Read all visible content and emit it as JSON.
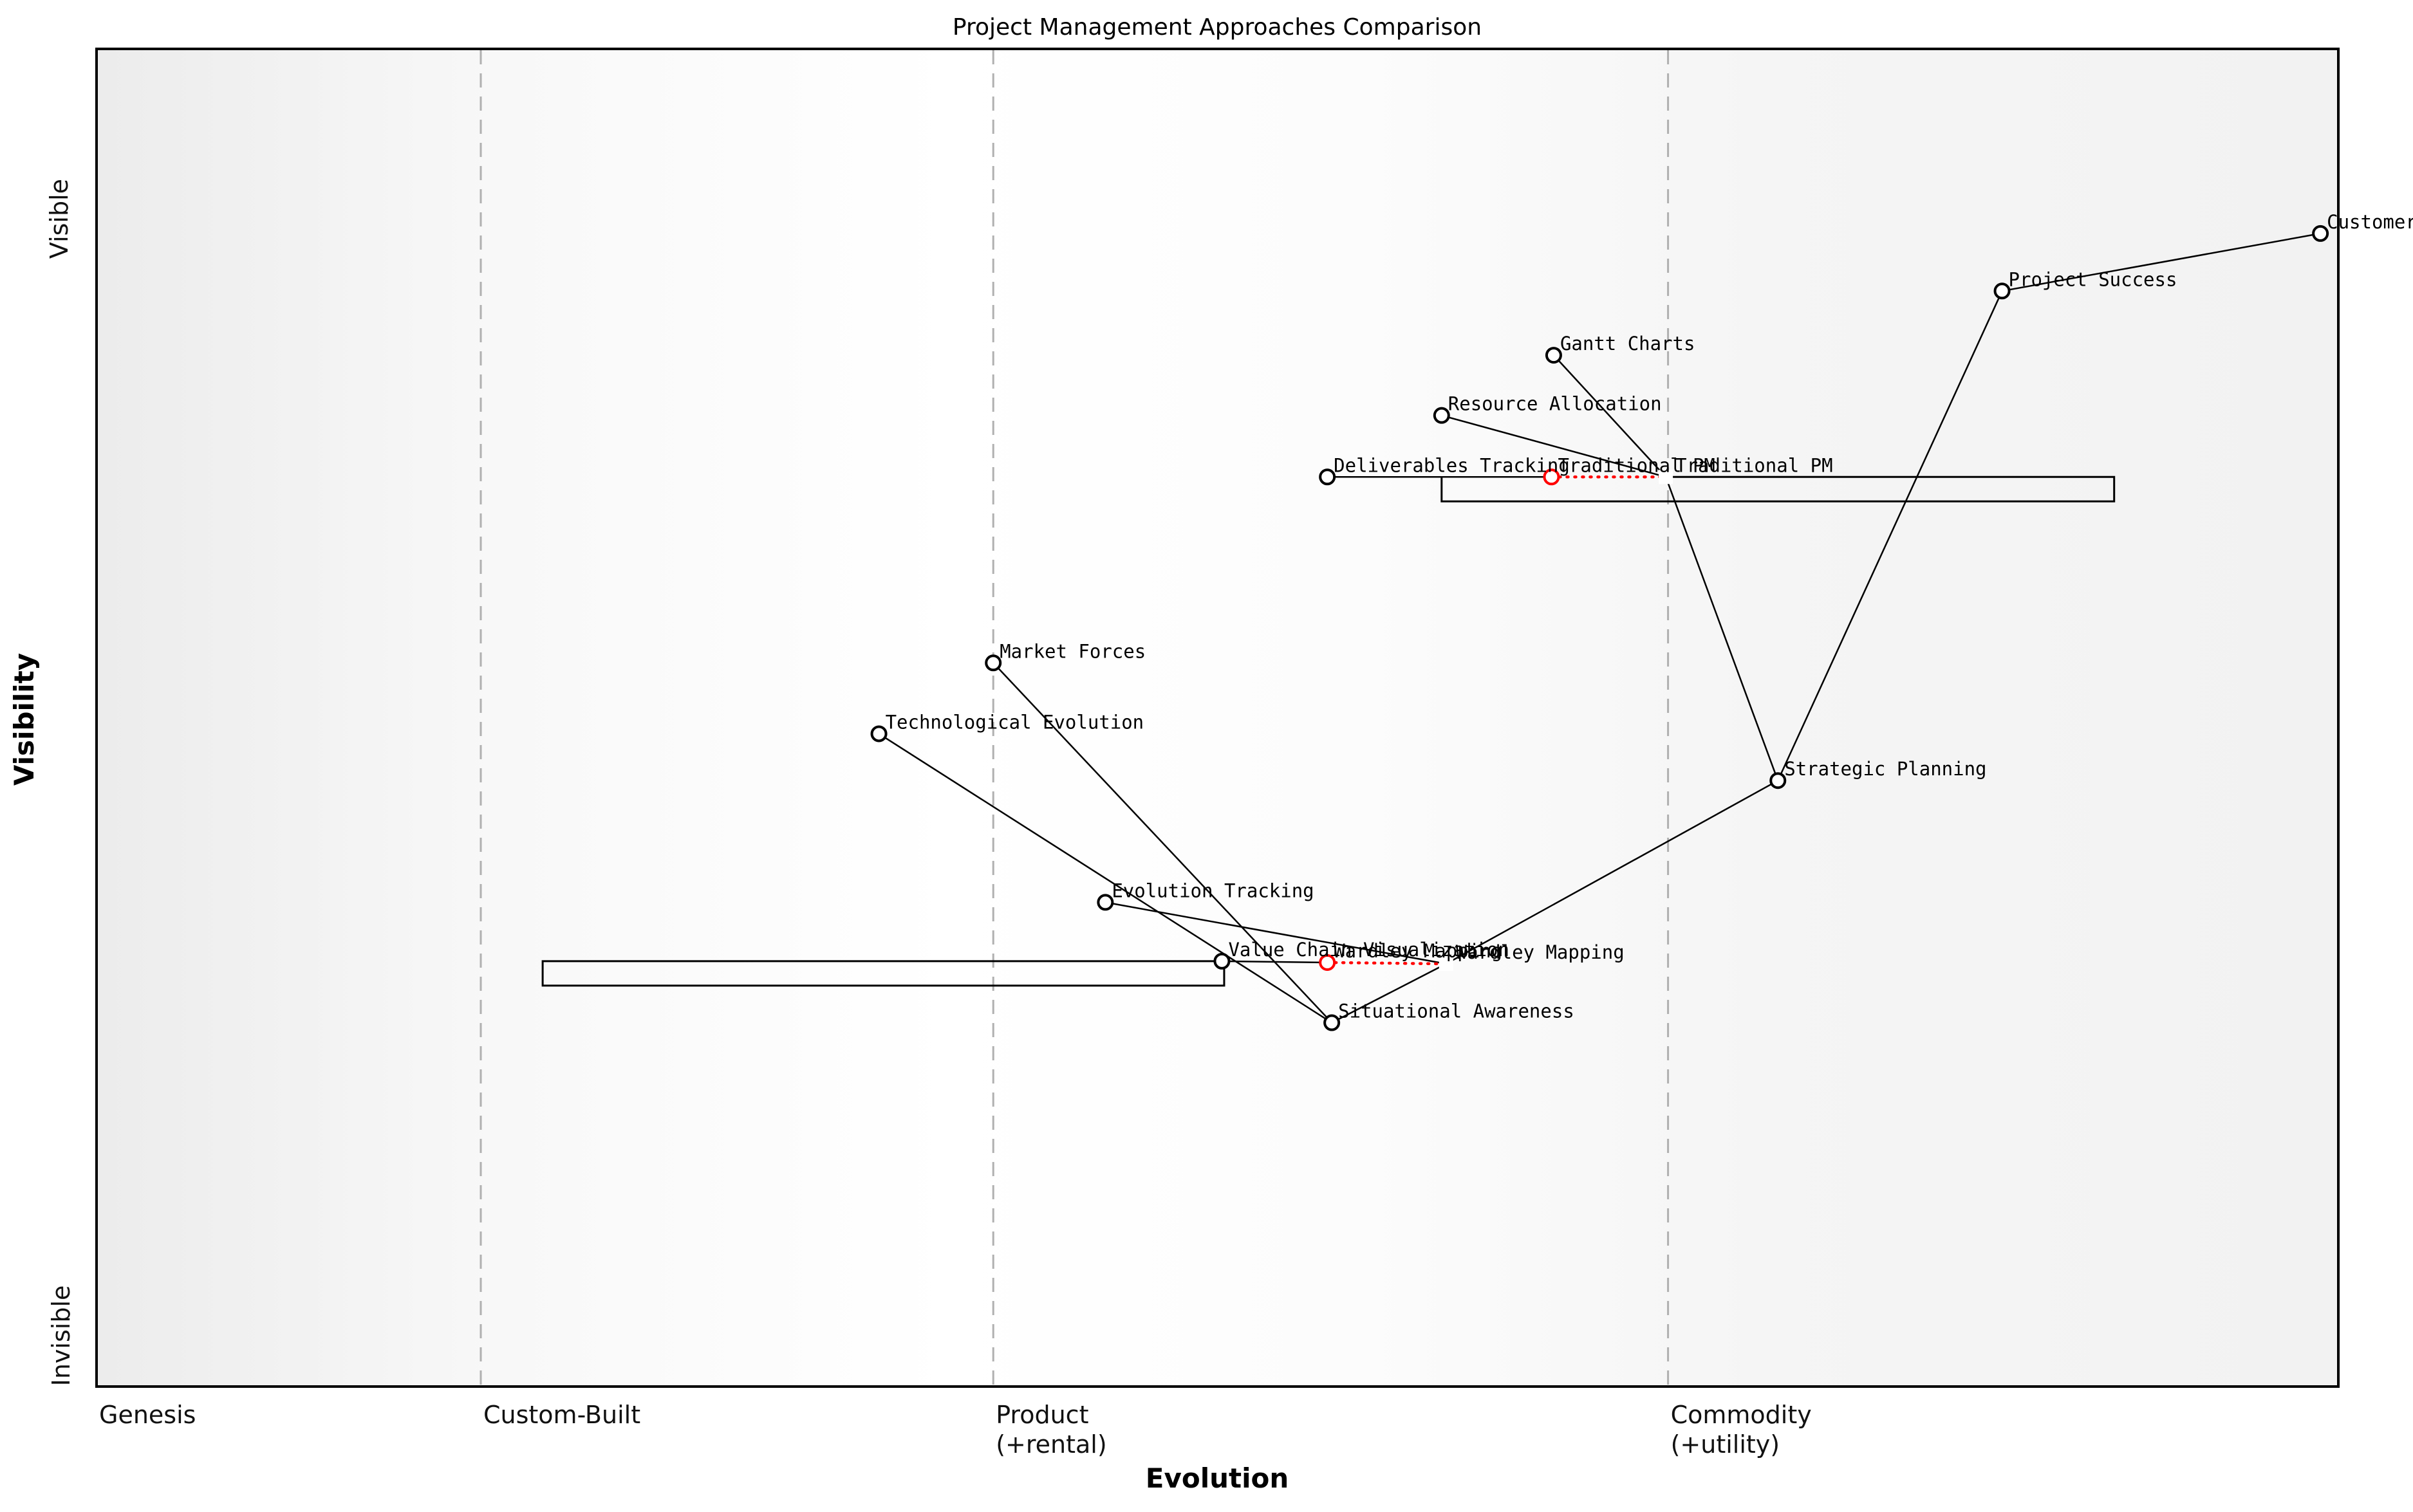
{
  "title": "Project Management Approaches Comparison",
  "axis": {
    "x_title": "Evolution",
    "y_title": "Visibility",
    "y_top_label": "Visible",
    "y_bottom_label": "Invisible"
  },
  "colors": {
    "node_stroke": "#000000",
    "alt_map_accent": "#ff0000",
    "stage_line": "#b0b0b0",
    "plot_bg_left": "#ececec",
    "plot_bg_mid": "#ffffff",
    "plot_bg_right": "#f2f2f2"
  },
  "stages": [
    {
      "id": "genesis",
      "e": 0.0,
      "lines": [
        "Genesis"
      ],
      "has_line": false
    },
    {
      "id": "custom",
      "e": 0.1714,
      "lines": [
        "Custom-Built"
      ],
      "has_line": true
    },
    {
      "id": "product",
      "e": 0.4,
      "lines": [
        "Product",
        "(+rental)"
      ],
      "has_line": true
    },
    {
      "id": "commodity",
      "e": 0.701,
      "lines": [
        "Commodity",
        "(+utility)"
      ],
      "has_line": true
    }
  ],
  "chart_data": {
    "type": "scatter",
    "title": "Project Management Approaches Comparison",
    "xlabel": "Evolution",
    "ylabel": "Visibility",
    "x_stage_boundaries": [
      "Genesis",
      "Custom-Built",
      "Product (+rental)",
      "Commodity (+utility)"
    ],
    "y_axis_annotations": [
      "Visible",
      "Invisible"
    ],
    "nodes": [
      {
        "id": "customer",
        "label": "Customer",
        "shape": "circle",
        "map": "black",
        "evolution": 0.992,
        "visibility": 0.862
      },
      {
        "id": "project_success",
        "label": "Project Success",
        "shape": "circle",
        "map": "black",
        "evolution": 0.85,
        "visibility": 0.819
      },
      {
        "id": "gantt_charts",
        "label": "Gantt Charts",
        "shape": "circle",
        "map": "black",
        "evolution": 0.65,
        "visibility": 0.771
      },
      {
        "id": "resource_allocation",
        "label": "Resource Allocation",
        "shape": "circle",
        "map": "black",
        "evolution": 0.6,
        "visibility": 0.726
      },
      {
        "id": "deliverables_tracking",
        "label": "Deliverables Tracking",
        "shape": "circle",
        "map": "black",
        "evolution": 0.549,
        "visibility": 0.68
      },
      {
        "id": "traditional_pm_1",
        "label": "Traditional PM",
        "shape": "circle",
        "map": "red",
        "evolution": 0.649,
        "visibility": 0.68
      },
      {
        "id": "traditional_pm_2",
        "label": "Traditional PM",
        "shape": "square",
        "map": "black",
        "evolution": 0.7,
        "visibility": 0.68,
        "label_dx": 15
      },
      {
        "id": "market_forces",
        "label": "Market Forces",
        "shape": "circle",
        "map": "black",
        "evolution": 0.4,
        "visibility": 0.541
      },
      {
        "id": "technological_evolution",
        "label": "Technological Evolution",
        "shape": "circle",
        "map": "black",
        "evolution": 0.349,
        "visibility": 0.488
      },
      {
        "id": "strategic_planning",
        "label": "Strategic Planning",
        "shape": "circle",
        "map": "black",
        "evolution": 0.75,
        "visibility": 0.453
      },
      {
        "id": "evolution_tracking",
        "label": "Evolution Tracking",
        "shape": "circle",
        "map": "black",
        "evolution": 0.45,
        "visibility": 0.362
      },
      {
        "id": "value_chain_visualization",
        "label": "Value Chain Visualization",
        "shape": "circle",
        "map": "black",
        "evolution": 0.502,
        "visibility": 0.318
      },
      {
        "id": "wardley_mapping_1",
        "label": "Wardley Mapping",
        "shape": "circle",
        "map": "red",
        "evolution": 0.549,
        "visibility": 0.317
      },
      {
        "id": "wardley_mapping_2",
        "label": "Wardley Mapping",
        "shape": "square",
        "map": "black",
        "evolution": 0.602,
        "visibility": 0.316,
        "label_dx": 15
      },
      {
        "id": "situational_awareness",
        "label": "Situational Awareness",
        "shape": "circle",
        "map": "black",
        "evolution": 0.551,
        "visibility": 0.272
      }
    ],
    "edges": [
      [
        "customer",
        "project_success"
      ],
      [
        "project_success",
        "strategic_planning"
      ],
      [
        "gantt_charts",
        "traditional_pm_2"
      ],
      [
        "resource_allocation",
        "traditional_pm_2"
      ],
      [
        "deliverables_tracking",
        "traditional_pm_1"
      ],
      [
        "traditional_pm_2",
        "strategic_planning"
      ],
      [
        "strategic_planning",
        "wardley_mapping_2"
      ],
      [
        "wardley_mapping_2",
        "situational_awareness"
      ],
      [
        "evolution_tracking",
        "wardley_mapping_2"
      ],
      [
        "market_forces",
        "situational_awareness"
      ],
      [
        "technological_evolution",
        "situational_awareness"
      ],
      [
        "value_chain_visualization",
        "wardley_mapping_1"
      ]
    ],
    "movements": [
      {
        "id": "traditional_pm_move",
        "from": "traditional_pm_1",
        "to": "traditional_pm_2"
      },
      {
        "id": "wardley_mapping_move",
        "from": "wardley_mapping_1",
        "to": "wardley_mapping_2"
      }
    ],
    "evolution_boxes": [
      {
        "id": "traditional_pm_range",
        "e0": 0.6,
        "e1": 0.9,
        "visibility": 0.68,
        "open_top_until_e": 0.7
      },
      {
        "id": "wardley_mapping_range",
        "e0": 0.199,
        "e1": 0.503,
        "visibility": 0.318,
        "open_top_until_e": null
      }
    ]
  }
}
